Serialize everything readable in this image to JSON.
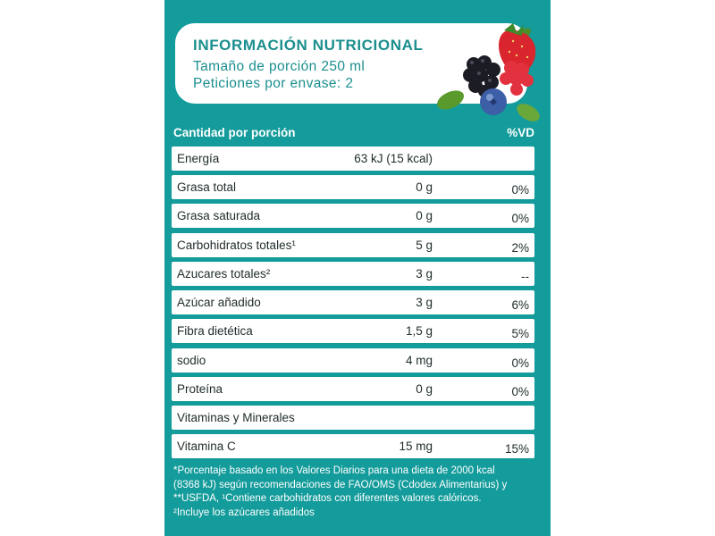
{
  "header": {
    "title": "INFORMACIÓN NUTRICIONAL",
    "serving_size": "Tamaño de porción 250 ml",
    "servings_per_container": "Peticiones por envase: 2"
  },
  "table": {
    "col_amount_header": "Cantidad por porción",
    "col_dv_header": "%VD",
    "rows": [
      {
        "label": "Energía",
        "amount": "63 kJ (15 kcal)",
        "dv": ""
      },
      {
        "label": "Grasa total",
        "amount": "0 g",
        "dv": "0%"
      },
      {
        "label": "Grasa saturada",
        "amount": "0 g",
        "dv": "0%"
      },
      {
        "label": "Carbohidratos totales¹",
        "amount": "5 g",
        "dv": "2%"
      },
      {
        "label": "Azucares totales²",
        "amount": "3 g",
        "dv": "--"
      },
      {
        "label": "Azúcar añadido",
        "amount": "3 g",
        "dv": "6%"
      },
      {
        "label": "Fibra dietética",
        "amount": "1,5 g",
        "dv": "5%"
      },
      {
        "label": "sodio",
        "amount": "4 mg",
        "dv": "0%"
      },
      {
        "label": "Proteína",
        "amount": "0 g",
        "dv": "0%"
      },
      {
        "label": "Vitaminas y Minerales",
        "amount": "",
        "dv": ""
      },
      {
        "label": "Vitamina C",
        "amount": "15 mg",
        "dv": "15%"
      }
    ]
  },
  "footnote": {
    "line1": "*Porcentaje basado en los Valores Diarios para una dieta de 2000 kcal",
    "line2": "(8368 kJ) según recomendaciones de FAO/OMS (Cdodex Alimentarius) y",
    "line3": "**USFDA, ¹Contiene carbohidratos con diferentes valores calóricos.",
    "line4": "²Incluye los azúcares añadidos"
  },
  "colors": {
    "panel": "#149b9b",
    "accent_text": "#1b8e8e"
  }
}
